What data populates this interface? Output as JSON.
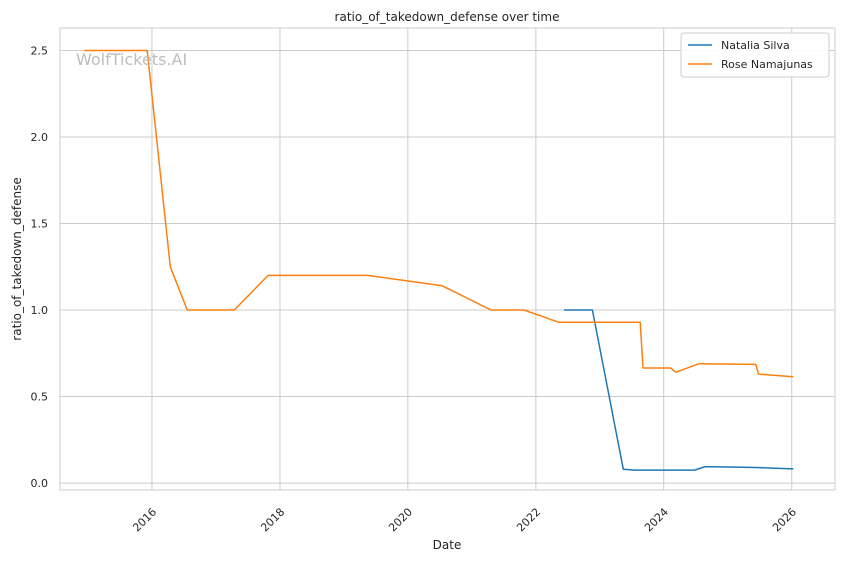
{
  "chart_data": {
    "type": "line",
    "title": "ratio_of_takedown_defense over time",
    "xlabel": "Date",
    "ylabel": "ratio_of_takedown_defense",
    "watermark": "WolfTickets.AI",
    "x_ticks": [
      "2016",
      "2018",
      "2020",
      "2022",
      "2024",
      "2026"
    ],
    "y_ticks": [
      "0.0",
      "0.5",
      "1.0",
      "1.5",
      "2.0",
      "2.5"
    ],
    "xlim": [
      "2014-07-25",
      "2026-09-05"
    ],
    "ylim": [
      -0.04,
      2.63
    ],
    "grid": true,
    "legend_position": "top-right",
    "series": [
      {
        "name": "Natalia Silva",
        "color": "#1f77b4",
        "points": [
          [
            "2022-06-10",
            1.0
          ],
          [
            "2022-11-20",
            1.0
          ],
          [
            "2023-05-15",
            0.08
          ],
          [
            "2023-07-20",
            0.075
          ],
          [
            "2024-06-25",
            0.075
          ],
          [
            "2024-08-25",
            0.095
          ],
          [
            "2025-06-10",
            0.09
          ],
          [
            "2026-01-10",
            0.082
          ]
        ]
      },
      {
        "name": "Rose Namajunas",
        "color": "#ff7f0e",
        "points": [
          [
            "2014-12-10",
            2.5
          ],
          [
            "2015-12-05",
            2.5
          ],
          [
            "2016-04-15",
            1.25
          ],
          [
            "2016-07-20",
            1.0
          ],
          [
            "2017-04-15",
            1.0
          ],
          [
            "2017-10-25",
            1.2
          ],
          [
            "2019-05-15",
            1.2
          ],
          [
            "2020-07-15",
            1.14
          ],
          [
            "2021-04-20",
            1.0
          ],
          [
            "2021-10-25",
            1.0
          ],
          [
            "2022-05-10",
            0.93
          ],
          [
            "2023-08-20",
            0.93
          ],
          [
            "2023-09-05",
            0.665
          ],
          [
            "2024-02-10",
            0.665
          ],
          [
            "2024-03-10",
            0.64
          ],
          [
            "2024-07-20",
            0.69
          ],
          [
            "2025-06-10",
            0.686
          ],
          [
            "2025-06-25",
            0.63
          ],
          [
            "2026-01-10",
            0.615
          ]
        ]
      }
    ]
  }
}
